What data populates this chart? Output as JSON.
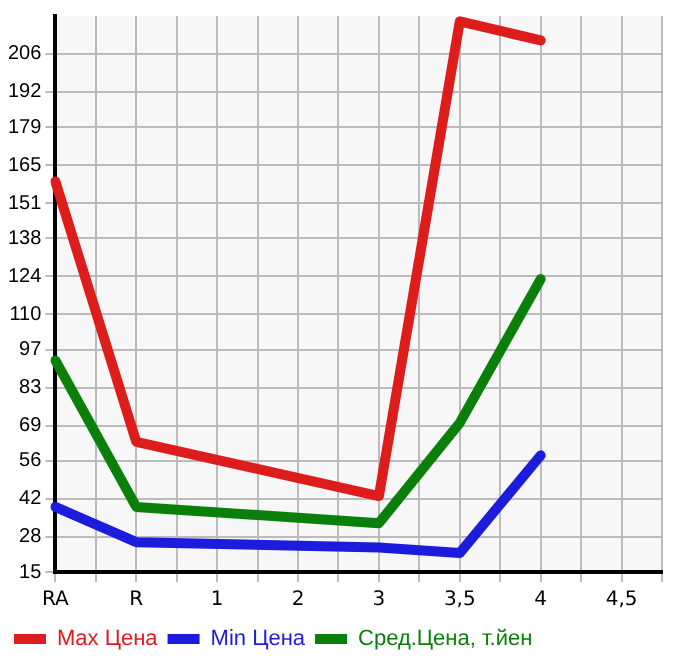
{
  "chart_data": {
    "type": "line",
    "categories": [
      "RA",
      null,
      "R",
      null,
      "1",
      null,
      "2",
      null,
      "3",
      null,
      "3,5",
      null,
      "4",
      null,
      "4,5",
      null
    ],
    "series": [
      {
        "name": "Max Цена",
        "color": "#dd1c1c",
        "values": [
          159,
          null,
          63,
          null,
          null,
          null,
          null,
          null,
          43,
          null,
          218,
          null,
          211,
          null,
          null,
          null
        ]
      },
      {
        "name": "Min Цена",
        "color": "#1c1cdd",
        "values": [
          39,
          null,
          26,
          null,
          null,
          null,
          null,
          null,
          24,
          null,
          22,
          null,
          58,
          null,
          null,
          null
        ]
      },
      {
        "name": "Сред.Цена, т.йен",
        "color": "#0a800a",
        "values": [
          93,
          null,
          39,
          null,
          null,
          null,
          null,
          null,
          33,
          null,
          70,
          null,
          123,
          null,
          null,
          null
        ]
      }
    ],
    "ylim": [
      15,
      220
    ],
    "yticks": [
      15,
      28,
      42,
      56,
      69,
      83,
      97,
      110,
      124,
      138,
      151,
      165,
      179,
      192,
      206
    ],
    "grid": true,
    "legend": "bottom",
    "marker": "none",
    "line_style": "solid"
  }
}
